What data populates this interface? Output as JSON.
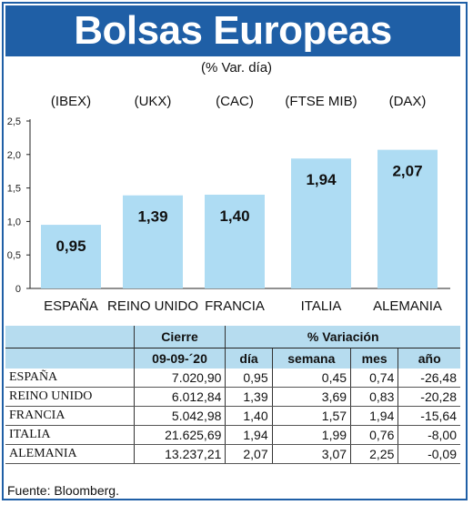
{
  "header": {
    "title": "Bolsas Europeas",
    "subtitle": "(% Var. día)"
  },
  "colors": {
    "accent": "#1f5fa6",
    "bar": "#aedcf3",
    "table_header": "#b6dcef"
  },
  "chart_data": {
    "type": "bar",
    "index_labels": [
      "(IBEX)",
      "(UKX)",
      "(CAC)",
      "(FTSE MIB)",
      "(DAX)"
    ],
    "categories": [
      "ESPAÑA",
      "REINO UNIDO",
      "FRANCIA",
      "ITALIA",
      "ALEMANIA"
    ],
    "values": [
      0.95,
      1.39,
      1.4,
      1.94,
      2.07
    ],
    "value_labels": [
      "0,95",
      "1,39",
      "1,40",
      "1,94",
      "2,07"
    ],
    "ylim": [
      0,
      2.5
    ],
    "yticks": [
      0,
      0.5,
      1.0,
      1.5,
      2.0,
      2.5
    ],
    "ytick_labels": [
      "0",
      "0,5",
      "1,0",
      "1,5",
      "2,0",
      "2,5"
    ],
    "grid": false
  },
  "table": {
    "header_cierre": "Cierre",
    "header_variacion": "% Variación",
    "date": "09-09-´20",
    "columns": [
      "día",
      "semana",
      "mes",
      "año"
    ],
    "rows": [
      {
        "name": "ESPAÑA",
        "cierre": "7.020,90",
        "dia": "0,95",
        "semana": "0,45",
        "mes": "0,74",
        "ano": "-26,48"
      },
      {
        "name": "REINO UNIDO",
        "cierre": "6.012,84",
        "dia": "1,39",
        "semana": "3,69",
        "mes": "0,83",
        "ano": "-20,28"
      },
      {
        "name": "FRANCIA",
        "cierre": "5.042,98",
        "dia": "1,40",
        "semana": "1,57",
        "mes": "1,94",
        "ano": "-15,64"
      },
      {
        "name": "ITALIA",
        "cierre": "21.625,69",
        "dia": "1,94",
        "semana": "1,99",
        "mes": "0,76",
        "ano": "-8,00"
      },
      {
        "name": "ALEMANIA",
        "cierre": "13.237,21",
        "dia": "2,07",
        "semana": "3,07",
        "mes": "2,25",
        "ano": "-0,09"
      }
    ]
  },
  "footer": {
    "source": "Fuente: Bloomberg."
  }
}
